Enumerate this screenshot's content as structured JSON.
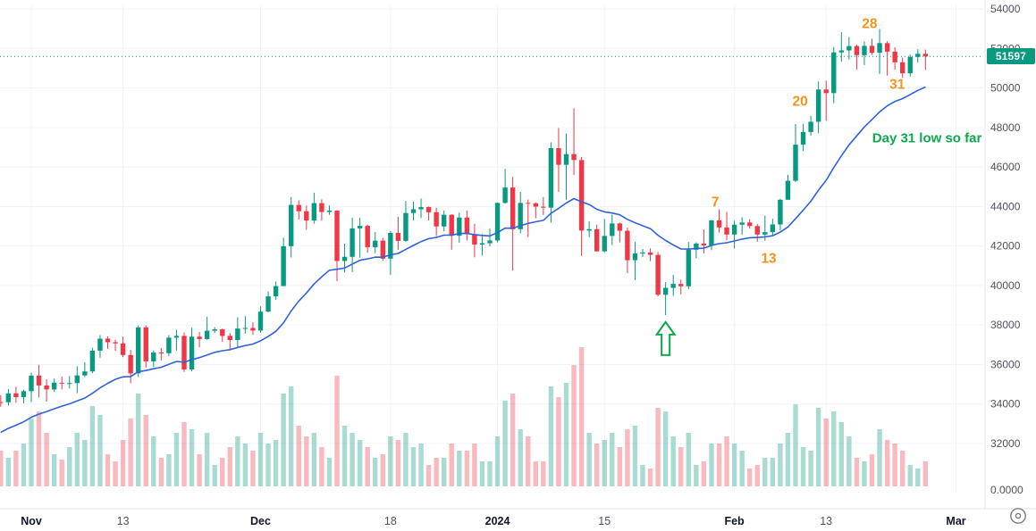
{
  "chart_data": {
    "type": "candlestick",
    "title": "",
    "ylim": [
      32000,
      54000
    ],
    "grid": true,
    "last_price": {
      "label": "51597",
      "value": 51597
    },
    "price_axis": {
      "ticks": [
        54000,
        52000,
        50000,
        48000,
        46000,
        44000,
        42000,
        40000,
        38000,
        36000,
        34000,
        32000
      ],
      "volume_zero_label": "0.0000"
    },
    "time_axis": {
      "ticks": [
        {
          "label": "Nov",
          "day": 0,
          "strong": true,
          "bold": false
        },
        {
          "label": "13",
          "day": 12,
          "strong": false,
          "bold": false
        },
        {
          "label": "Dec",
          "day": 30,
          "strong": true,
          "bold": false
        },
        {
          "label": "18",
          "day": 47,
          "strong": false,
          "bold": false
        },
        {
          "label": "2024",
          "day": 61,
          "strong": true,
          "bold": true
        },
        {
          "label": "15",
          "day": 75,
          "strong": false,
          "bold": false
        },
        {
          "label": "Feb",
          "day": 92,
          "strong": true,
          "bold": false
        },
        {
          "label": "13",
          "day": 104,
          "strong": false,
          "bold": false
        },
        {
          "label": "Mar",
          "day": 121,
          "strong": true,
          "bold": false
        }
      ]
    },
    "annotations": {
      "day_numbers": [
        {
          "text": "7",
          "day": 89.5,
          "price": 44200
        },
        {
          "text": "13",
          "day": 96.5,
          "price": 41350
        },
        {
          "text": "20",
          "day": 100.6,
          "price": 49300
        },
        {
          "text": "28",
          "day": 109.7,
          "price": 53230
        },
        {
          "text": "31",
          "day": 113.3,
          "price": 50160
        }
      ],
      "note": {
        "text": "Day 31 low so far",
        "day": 117.2,
        "price": 47450
      },
      "arrow": {
        "day": 83,
        "tip_price": 38150
      }
    },
    "colors": {
      "background": "#ffffff",
      "up": "#089981",
      "down": "#f23645",
      "volume_up": "rgba(8,153,129,0.35)",
      "volume_down": "rgba(242,54,69,0.35)",
      "ma_line": "#2f62d9",
      "grid": "#f0f3fa",
      "axis_border": "#e0e3eb",
      "axis_text": "#50535e",
      "axis_text_strong": "#131722",
      "annotation_orange": "#f7931a",
      "annotation_green": "#0caa4d",
      "last_price_line": "#089981",
      "badge_bg": "#089981",
      "badge_text": "#ffffff",
      "icon": "#787b86"
    },
    "candles": {
      "first_day_offset": -4,
      "ohlcv": [
        [
          34100,
          34450,
          33860,
          34090,
          0.2
        ],
        [
          34090,
          34750,
          33920,
          34540,
          0.16
        ],
        [
          34540,
          34870,
          34060,
          34350,
          0.2
        ],
        [
          34350,
          34720,
          34040,
          34650,
          0.24
        ],
        [
          34650,
          35590,
          34100,
          35440,
          0.38
        ],
        [
          35440,
          35990,
          34330,
          34940,
          0.42
        ],
        [
          34940,
          35250,
          34120,
          34740,
          0.3
        ],
        [
          34740,
          35290,
          34610,
          35080,
          0.18
        ],
        [
          35080,
          35390,
          34740,
          35050,
          0.15
        ],
        [
          35050,
          35420,
          34790,
          35060,
          0.22
        ],
        [
          35060,
          35910,
          34550,
          35450,
          0.3
        ],
        [
          35450,
          36120,
          35360,
          35650,
          0.26
        ],
        [
          35650,
          36850,
          35560,
          36700,
          0.45
        ],
        [
          36700,
          37490,
          36350,
          37310,
          0.4
        ],
        [
          37310,
          37420,
          36800,
          37130,
          0.18
        ],
        [
          37130,
          37250,
          36690,
          37070,
          0.14
        ],
        [
          37070,
          37420,
          36370,
          36480,
          0.26
        ],
        [
          36480,
          36750,
          35060,
          35550,
          0.38
        ],
        [
          35550,
          37980,
          35370,
          37880,
          0.52
        ],
        [
          37880,
          37980,
          35850,
          36160,
          0.4
        ],
        [
          36160,
          36700,
          35880,
          36610,
          0.28
        ],
        [
          36610,
          36840,
          36210,
          36570,
          0.16
        ],
        [
          36570,
          37490,
          36420,
          37360,
          0.18
        ],
        [
          37360,
          37750,
          36710,
          37450,
          0.3
        ],
        [
          37450,
          37630,
          35630,
          35750,
          0.36
        ],
        [
          35750,
          37860,
          35660,
          37410,
          0.32
        ],
        [
          37410,
          37650,
          36870,
          37290,
          0.18
        ],
        [
          37290,
          38420,
          37250,
          37710,
          0.3
        ],
        [
          37710,
          37890,
          37590,
          37780,
          0.12
        ],
        [
          37780,
          37820,
          37150,
          37450,
          0.16
        ],
        [
          37450,
          37590,
          36710,
          37240,
          0.22
        ],
        [
          37240,
          38390,
          36870,
          37820,
          0.28
        ],
        [
          37820,
          38450,
          37570,
          37850,
          0.24
        ],
        [
          37850,
          38140,
          37500,
          37720,
          0.2
        ],
        [
          37720,
          38950,
          37620,
          38680,
          0.3
        ],
        [
          38680,
          39700,
          38640,
          39450,
          0.24
        ],
        [
          39450,
          40200,
          39270,
          39970,
          0.26
        ],
        [
          39970,
          42420,
          39970,
          41990,
          0.52
        ],
        [
          41990,
          44480,
          41420,
          44080,
          0.56
        ],
        [
          44080,
          44310,
          43340,
          43760,
          0.34
        ],
        [
          43760,
          44050,
          42820,
          43290,
          0.28
        ],
        [
          43290,
          44700,
          43130,
          44170,
          0.3
        ],
        [
          44170,
          44360,
          43280,
          43720,
          0.22
        ],
        [
          43720,
          44050,
          43580,
          43790,
          0.16
        ],
        [
          43790,
          43810,
          40220,
          41240,
          0.62
        ],
        [
          41240,
          42120,
          40660,
          41450,
          0.34
        ],
        [
          41450,
          43430,
          40680,
          42890,
          0.3
        ],
        [
          42890,
          43420,
          41410,
          43020,
          0.26
        ],
        [
          43020,
          43080,
          41660,
          41940,
          0.22
        ],
        [
          41940,
          42700,
          41640,
          42270,
          0.16
        ],
        [
          42270,
          42420,
          41250,
          41360,
          0.18
        ],
        [
          41360,
          42760,
          40540,
          42660,
          0.28
        ],
        [
          42660,
          43480,
          41810,
          42260,
          0.26
        ],
        [
          42260,
          44280,
          42210,
          43670,
          0.3
        ],
        [
          43670,
          44240,
          43290,
          43860,
          0.22
        ],
        [
          43860,
          44400,
          43410,
          43970,
          0.24
        ],
        [
          43970,
          44000,
          43290,
          43710,
          0.12
        ],
        [
          43710,
          43940,
          42500,
          42990,
          0.16
        ],
        [
          42990,
          43800,
          42740,
          43580,
          0.16
        ],
        [
          43580,
          43600,
          41810,
          42520,
          0.24
        ],
        [
          42520,
          43680,
          42170,
          43440,
          0.2
        ],
        [
          43440,
          43800,
          42280,
          42600,
          0.2
        ],
        [
          42600,
          43120,
          41430,
          42070,
          0.24
        ],
        [
          42070,
          42600,
          41520,
          42140,
          0.14
        ],
        [
          42140,
          42880,
          41980,
          42280,
          0.14
        ],
        [
          42280,
          44190,
          42180,
          44180,
          0.28
        ],
        [
          44180,
          45900,
          44150,
          44960,
          0.48
        ],
        [
          44960,
          45500,
          40750,
          42850,
          0.52
        ],
        [
          42850,
          44740,
          42640,
          44180,
          0.32
        ],
        [
          44180,
          44350,
          42450,
          44160,
          0.28
        ],
        [
          44160,
          44210,
          43410,
          43990,
          0.14
        ],
        [
          43990,
          44480,
          43570,
          43940,
          0.14
        ],
        [
          43940,
          47250,
          43180,
          46950,
          0.56
        ],
        [
          46950,
          47970,
          44750,
          46110,
          0.5
        ],
        [
          46110,
          47700,
          44350,
          46650,
          0.58
        ],
        [
          46650,
          48970,
          45600,
          46350,
          0.68
        ],
        [
          46350,
          46510,
          41500,
          42780,
          0.78
        ],
        [
          42780,
          43250,
          42440,
          42850,
          0.3
        ],
        [
          42850,
          43080,
          41720,
          41730,
          0.24
        ],
        [
          41730,
          43370,
          41680,
          42510,
          0.26
        ],
        [
          42510,
          43580,
          42050,
          43140,
          0.3
        ],
        [
          43140,
          43190,
          42180,
          42770,
          0.22
        ],
        [
          42770,
          42930,
          40630,
          41280,
          0.32
        ],
        [
          41280,
          42200,
          40280,
          41620,
          0.34
        ],
        [
          41620,
          41850,
          41440,
          41670,
          0.12
        ],
        [
          41670,
          41880,
          41230,
          41550,
          0.1
        ],
        [
          41550,
          41690,
          39450,
          39530,
          0.44
        ],
        [
          39530,
          40170,
          38500,
          39880,
          0.42
        ],
        [
          39880,
          40540,
          39480,
          40080,
          0.28
        ],
        [
          40080,
          40300,
          39550,
          39960,
          0.22
        ],
        [
          39960,
          42200,
          39820,
          41810,
          0.3
        ],
        [
          41810,
          42190,
          41390,
          42120,
          0.12
        ],
        [
          42120,
          42840,
          41620,
          42030,
          0.14
        ],
        [
          42030,
          43310,
          41790,
          43300,
          0.24
        ],
        [
          43300,
          43850,
          42680,
          42940,
          0.24
        ],
        [
          42940,
          43730,
          42280,
          42580,
          0.28
        ],
        [
          42580,
          43280,
          41880,
          43080,
          0.24
        ],
        [
          43080,
          43450,
          42560,
          43190,
          0.2
        ],
        [
          43190,
          43350,
          42880,
          43010,
          0.1
        ],
        [
          43010,
          43120,
          42220,
          42580,
          0.12
        ],
        [
          42580,
          43540,
          42260,
          42700,
          0.16
        ],
        [
          42700,
          43380,
          42570,
          43090,
          0.16
        ],
        [
          43090,
          44390,
          42790,
          44340,
          0.24
        ],
        [
          44340,
          45610,
          44330,
          45300,
          0.3
        ],
        [
          45300,
          48170,
          45240,
          47130,
          0.46
        ],
        [
          47130,
          48180,
          46800,
          47770,
          0.22
        ],
        [
          47770,
          48580,
          47580,
          48290,
          0.2
        ],
        [
          48290,
          50330,
          47710,
          49920,
          0.44
        ],
        [
          49920,
          50370,
          48330,
          49740,
          0.38
        ],
        [
          49740,
          52070,
          49230,
          51800,
          0.42
        ],
        [
          51800,
          52820,
          51320,
          51900,
          0.36
        ],
        [
          51900,
          52580,
          51440,
          52120,
          0.28
        ],
        [
          52120,
          52190,
          50920,
          51660,
          0.16
        ],
        [
          51660,
          52360,
          51160,
          52130,
          0.14
        ],
        [
          52130,
          52490,
          51670,
          51780,
          0.18
        ],
        [
          51780,
          52985,
          50710,
          52270,
          0.32
        ],
        [
          52270,
          52370,
          50620,
          51840,
          0.26
        ],
        [
          51840,
          52060,
          50930,
          51300,
          0.24
        ],
        [
          51300,
          51530,
          50520,
          50740,
          0.2
        ],
        [
          50740,
          51690,
          50580,
          51570,
          0.12
        ],
        [
          51570,
          51960,
          51290,
          51730,
          0.1
        ],
        [
          51730,
          51940,
          50910,
          51597,
          0.14
        ]
      ]
    }
  }
}
